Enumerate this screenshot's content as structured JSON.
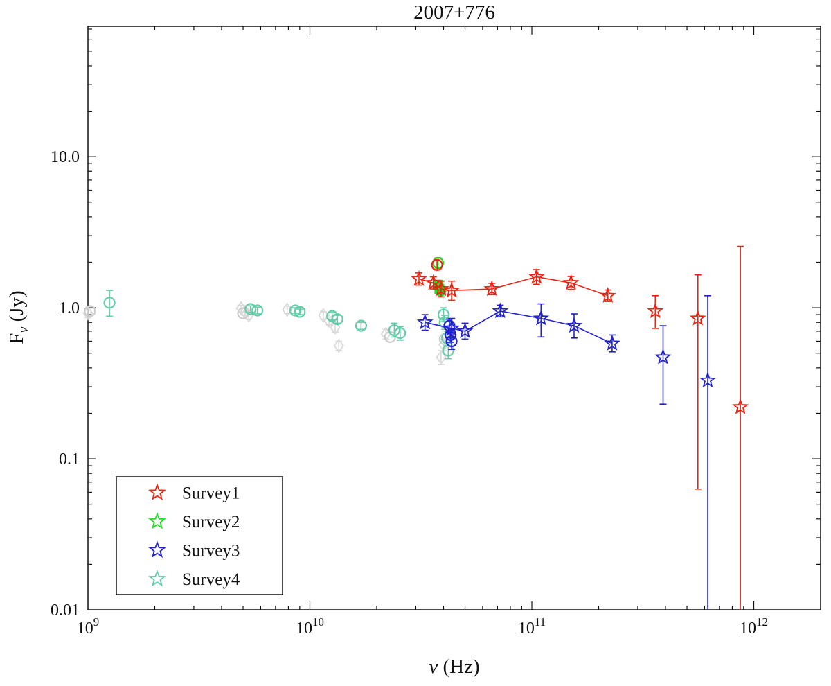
{
  "title": "2007+776",
  "axes": {
    "xlabel_symbol": "ν",
    "xlabel_rest": " (Hz)",
    "ylabel_main": "F",
    "ylabel_sub": "ν",
    "ylabel_rest": " (Jy)",
    "x_tick_exponents": [
      9,
      10,
      11,
      12
    ],
    "y_tick_labels": [
      "0.01",
      "0.1",
      "1.0",
      "10.0"
    ]
  },
  "legend": {
    "position": "bottom-left",
    "entries": [
      {
        "label": "Survey1",
        "color": "#ee2211",
        "marker": "star"
      },
      {
        "label": "Survey2",
        "color": "#22dd22",
        "marker": "star"
      },
      {
        "label": "Survey3",
        "color": "#2222cc",
        "marker": "star"
      },
      {
        "label": "Survey4",
        "color": "#66cdaa",
        "marker": "star"
      }
    ]
  },
  "chart_data": {
    "type": "scatter",
    "title": "2007+776",
    "xlabel": "ν (Hz)",
    "ylabel": "Fν (Jy)",
    "x_scale": "log",
    "y_scale": "log",
    "xlim": [
      1000000000.0,
      2000000000000.0
    ],
    "ylim": [
      0.01,
      73
    ],
    "x_ticks": [
      1000000000.0,
      10000000000.0,
      100000000000.0,
      1000000000000.0
    ],
    "y_ticks": [
      0.01,
      0.1,
      1.0,
      10.0
    ],
    "grid": false,
    "legend_position": "bottom-left",
    "series": [
      {
        "name": "archival-diamonds",
        "marker": "diamond",
        "color": "#d9d9d9",
        "line": false,
        "points": [
          {
            "x": 1000000000.0,
            "y": 0.92,
            "lo": 0.86,
            "hi": 0.99
          },
          {
            "x": 4900000000.0,
            "y": 0.99,
            "lo": 0.94,
            "hi": 1.04
          },
          {
            "x": 5100000000.0,
            "y": 0.94,
            "lo": 0.89,
            "hi": 0.99
          },
          {
            "x": 5300000000.0,
            "y": 0.89,
            "lo": 0.84,
            "hi": 0.94
          },
          {
            "x": 7900000000.0,
            "y": 0.97,
            "lo": 0.92,
            "hi": 1.02
          },
          {
            "x": 11500000000.0,
            "y": 0.89,
            "lo": 0.84,
            "hi": 0.94
          },
          {
            "x": 12200000000.0,
            "y": 0.82,
            "lo": 0.77,
            "hi": 0.87
          },
          {
            "x": 13000000000.0,
            "y": 0.74,
            "lo": 0.69,
            "hi": 0.79
          },
          {
            "x": 13500000000.0,
            "y": 0.56,
            "lo": 0.52,
            "hi": 0.6
          },
          {
            "x": 22000000000.0,
            "y": 0.67,
            "lo": 0.62,
            "hi": 0.72
          },
          {
            "x": 39000000000.0,
            "y": 0.47,
            "lo": 0.42,
            "hi": 0.52
          },
          {
            "x": 40000000000.0,
            "y": 0.57,
            "lo": 0.52,
            "hi": 0.62
          }
        ]
      },
      {
        "name": "archival-circles",
        "marker": "circle",
        "color": "#cccccc",
        "line": false,
        "points": [
          {
            "x": 1020000000.0,
            "y": 0.95
          },
          {
            "x": 5000000000.0,
            "y": 0.92
          },
          {
            "x": 23000000000.0,
            "y": 0.64
          },
          {
            "x": 40500000000.0,
            "y": 0.62
          }
        ]
      },
      {
        "name": "survey4-circles",
        "marker": "circle",
        "color": "#66cdaa",
        "line": false,
        "points": [
          {
            "x": 1250000000.0,
            "y": 1.08,
            "lo": 0.88,
            "hi": 1.3
          },
          {
            "x": 5400000000.0,
            "y": 0.98,
            "lo": 0.93,
            "hi": 1.03
          },
          {
            "x": 5800000000.0,
            "y": 0.96,
            "lo": 0.91,
            "hi": 1.01
          },
          {
            "x": 8600000000.0,
            "y": 0.96,
            "lo": 0.92,
            "hi": 1.0
          },
          {
            "x": 9000000000.0,
            "y": 0.94,
            "lo": 0.9,
            "hi": 0.98
          },
          {
            "x": 12600000000.0,
            "y": 0.88,
            "lo": 0.83,
            "hi": 0.93
          },
          {
            "x": 13300000000.0,
            "y": 0.84,
            "lo": 0.79,
            "hi": 0.89
          },
          {
            "x": 17000000000.0,
            "y": 0.76,
            "lo": 0.72,
            "hi": 0.8
          },
          {
            "x": 24000000000.0,
            "y": 0.71,
            "lo": 0.64,
            "hi": 0.79
          },
          {
            "x": 25500000000.0,
            "y": 0.68,
            "lo": 0.61,
            "hi": 0.75
          },
          {
            "x": 40000000000.0,
            "y": 0.9,
            "lo": 0.81,
            "hi": 1.0
          },
          {
            "x": 40500000000.0,
            "y": 0.8,
            "lo": 0.72,
            "hi": 0.89
          },
          {
            "x": 41500000000.0,
            "y": 0.63,
            "lo": 0.56,
            "hi": 0.7
          },
          {
            "x": 42000000000.0,
            "y": 0.52,
            "lo": 0.46,
            "hi": 0.58
          }
        ]
      },
      {
        "name": "survey3-circles",
        "marker": "circle",
        "color": "#2222cc",
        "line": false,
        "points": [
          {
            "x": 42500000000.0,
            "y": 0.76,
            "lo": 0.69,
            "hi": 0.84
          },
          {
            "x": 43000000000.0,
            "y": 0.66,
            "lo": 0.59,
            "hi": 0.73
          },
          {
            "x": 43500000000.0,
            "y": 0.6,
            "lo": 0.53,
            "hi": 0.67
          }
        ]
      },
      {
        "name": "survey3-stars-connected",
        "marker": "star",
        "color": "#2222cc",
        "line": true,
        "points": [
          {
            "x": 33000000000.0,
            "y": 0.8,
            "lo": 0.71,
            "hi": 0.9
          },
          {
            "x": 43500000000.0,
            "y": 0.73,
            "lo": 0.63,
            "hi": 0.85
          },
          {
            "x": 50000000000.0,
            "y": 0.7,
            "lo": 0.62,
            "hi": 0.79
          },
          {
            "x": 72000000000.0,
            "y": 0.95,
            "lo": 0.87,
            "hi": 1.04
          },
          {
            "x": 110000000000.0,
            "y": 0.85,
            "lo": 0.64,
            "hi": 1.06
          },
          {
            "x": 155000000000.0,
            "y": 0.76,
            "lo": 0.63,
            "hi": 0.91
          },
          {
            "x": 230000000000.0,
            "y": 0.58,
            "lo": 0.51,
            "hi": 0.66
          }
        ]
      },
      {
        "name": "survey3-stars-isolated",
        "marker": "star",
        "color": "#2222cc",
        "line": false,
        "points": [
          {
            "x": 390000000000.0,
            "y": 0.47,
            "lo": 0.23,
            "hi": 0.76
          },
          {
            "x": 620000000000.0,
            "y": 0.33,
            "lo": 0.007,
            "hi": 1.2
          }
        ]
      },
      {
        "name": "survey2-circles",
        "marker": "circle",
        "color": "#22dd22",
        "line": false,
        "points": [
          {
            "x": 37800000000.0,
            "y": 1.98,
            "lo": 1.83,
            "hi": 2.14
          },
          {
            "x": 38800000000.0,
            "y": 1.3,
            "lo": 1.22,
            "hi": 1.39
          }
        ]
      },
      {
        "name": "survey2-squares",
        "marker": "square-filled",
        "color": "#22dd22",
        "line": false,
        "points": [
          {
            "x": 38000000000.0,
            "y": 1.42,
            "lo": 1.33,
            "hi": 1.52
          },
          {
            "x": 38300000000.0,
            "y": 1.33,
            "lo": 1.25,
            "hi": 1.42
          }
        ]
      },
      {
        "name": "survey1-circle",
        "marker": "circle",
        "color": "#ee2211",
        "line": false,
        "points": [
          {
            "x": 37400000000.0,
            "y": 1.92,
            "lo": 1.78,
            "hi": 2.07
          }
        ]
      },
      {
        "name": "survey1-stars-connected",
        "marker": "star",
        "color": "#ee2211",
        "line": true,
        "points": [
          {
            "x": 31000000000.0,
            "y": 1.55,
            "lo": 1.41,
            "hi": 1.7
          },
          {
            "x": 36000000000.0,
            "y": 1.46,
            "lo": 1.33,
            "hi": 1.6
          },
          {
            "x": 39000000000.0,
            "y": 1.33,
            "lo": 1.18,
            "hi": 1.5
          },
          {
            "x": 43500000000.0,
            "y": 1.3,
            "lo": 1.12,
            "hi": 1.5
          },
          {
            "x": 66000000000.0,
            "y": 1.33,
            "lo": 1.22,
            "hi": 1.45
          },
          {
            "x": 105000000000.0,
            "y": 1.6,
            "lo": 1.43,
            "hi": 1.79
          },
          {
            "x": 150000000000.0,
            "y": 1.46,
            "lo": 1.32,
            "hi": 1.61
          },
          {
            "x": 220000000000.0,
            "y": 1.2,
            "lo": 1.1,
            "hi": 1.31
          }
        ]
      },
      {
        "name": "survey1-stars-isolated",
        "marker": "star",
        "color": "#ee2211",
        "line": false,
        "points": [
          {
            "x": 360000000000.0,
            "y": 0.95,
            "lo": 0.73,
            "hi": 1.2
          },
          {
            "x": 560000000000.0,
            "y": 0.85,
            "lo": 0.063,
            "hi": 1.65
          },
          {
            "x": 870000000000.0,
            "y": 0.22,
            "lo": 0.009,
            "hi": 2.55
          }
        ]
      }
    ]
  }
}
